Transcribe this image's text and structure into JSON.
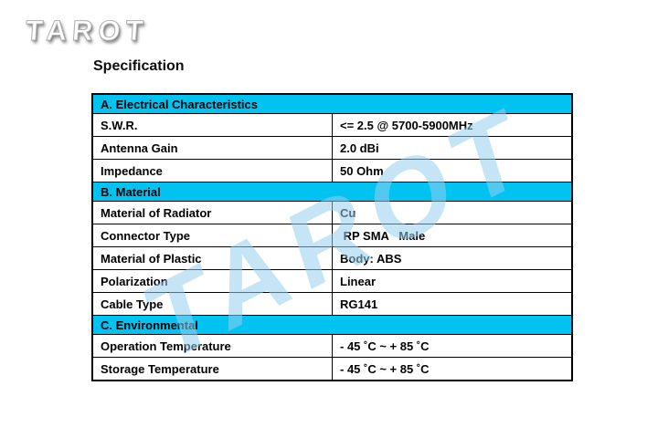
{
  "logo": {
    "text": "TAROT"
  },
  "title": "Specification",
  "watermark": {
    "text": "TAROT",
    "color": "#96cdee"
  },
  "colors": {
    "section_header_bg": "#00c3f2",
    "table_border": "#000000",
    "page_bg": "#ffffff"
  },
  "table": {
    "sections": [
      {
        "header": "A. Electrical Characteristics",
        "rows": [
          {
            "label": "S.W.R.",
            "value": "<= 2.5 @ 5700-5900MHz"
          },
          {
            "label": "Antenna Gain",
            "value": "2.0 dBi"
          },
          {
            "label": "Impedance",
            "value": "50 Ohm"
          }
        ]
      },
      {
        "header": "B. Material",
        "rows": [
          {
            "label": "Material of Radiator",
            "value": "Cu"
          },
          {
            "label": "Connector Type",
            "value": " RP SMA   Male"
          },
          {
            "label": "Material of Plastic",
            "value": "Body: ABS"
          },
          {
            "label": "Polarization",
            "value": "Linear"
          },
          {
            "label": "Cable Type",
            "value": "RG141"
          }
        ]
      },
      {
        "header": "C. Environmental",
        "rows": [
          {
            "label": "Operation Temperature",
            "value": "- 45 ˚C ~ + 85 ˚C"
          },
          {
            "label": "Storage Temperature",
            "value": "- 45 ˚C ~ + 85 ˚C"
          }
        ]
      }
    ]
  }
}
